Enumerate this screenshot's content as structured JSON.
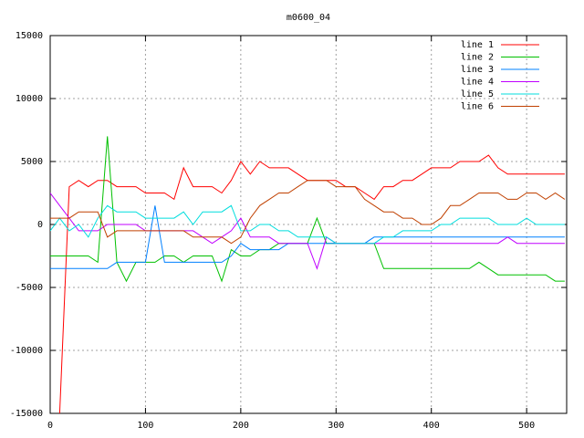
{
  "chart_data": {
    "type": "line",
    "title": "m0600_04",
    "x": [
      0,
      10,
      20,
      30,
      40,
      50,
      60,
      70,
      80,
      90,
      100,
      110,
      120,
      130,
      140,
      150,
      160,
      170,
      180,
      190,
      200,
      210,
      220,
      230,
      240,
      250,
      260,
      270,
      280,
      290,
      300,
      310,
      320,
      330,
      340,
      350,
      360,
      370,
      380,
      390,
      400,
      410,
      420,
      430,
      440,
      450,
      460,
      470,
      480,
      490,
      500,
      510,
      520,
      530,
      540
    ],
    "xlim": [
      0,
      542
    ],
    "xticks": [
      0,
      100,
      200,
      300,
      400,
      500
    ],
    "ylim": [
      -15000,
      15000
    ],
    "yticks": [
      -15000,
      -10000,
      -5000,
      0,
      5000,
      10000,
      15000
    ],
    "grid": true,
    "legend": "top-right",
    "series": [
      {
        "name": "line 1",
        "color": "#ff0000",
        "values": [
          null,
          -15000,
          3000,
          3500,
          3000,
          3500,
          3500,
          3000,
          3000,
          3000,
          2500,
          2500,
          2500,
          2000,
          4500,
          3000,
          3000,
          3000,
          2500,
          3500,
          5000,
          4000,
          5000,
          4500,
          4500,
          4500,
          4000,
          3500,
          3500,
          3500,
          3500,
          3000,
          3000,
          2500,
          2000,
          3000,
          3000,
          3500,
          3500,
          4000,
          4500,
          4500,
          4500,
          5000,
          5000,
          5000,
          5500,
          4500,
          4000,
          4000,
          4000,
          4000,
          4000,
          4000,
          4000
        ]
      },
      {
        "name": "line 2",
        "color": "#00c000",
        "values": [
          -2500,
          -2500,
          -2500,
          -2500,
          -2500,
          -3000,
          7000,
          -3000,
          -4500,
          -3000,
          -3000,
          -3000,
          -2500,
          -2500,
          -3000,
          -2500,
          -2500,
          -2500,
          -4500,
          -2000,
          -2500,
          -2500,
          -2000,
          -2000,
          -1500,
          -1500,
          -1500,
          -1500,
          500,
          -1500,
          -1500,
          -1500,
          -1500,
          -1500,
          -1500,
          -3500,
          -3500,
          -3500,
          -3500,
          -3500,
          -3500,
          -3500,
          -3500,
          -3500,
          -3500,
          -3000,
          -3500,
          -4000,
          -4000,
          -4000,
          -4000,
          -4000,
          -4000,
          -4500,
          -4500
        ]
      },
      {
        "name": "line 3",
        "color": "#0080ff",
        "values": [
          -3500,
          -3500,
          -3500,
          -3500,
          -3500,
          -3500,
          -3500,
          -3000,
          -3000,
          -3000,
          -3000,
          1500,
          -3000,
          -3000,
          -3000,
          -3000,
          -3000,
          -3000,
          -3000,
          -2500,
          -1500,
          -2000,
          -2000,
          -2000,
          -2000,
          -1500,
          -1500,
          -1500,
          -1500,
          -1500,
          -1500,
          -1500,
          -1500,
          -1500,
          -1000,
          -1000,
          -1000,
          -1000,
          -1000,
          -1000,
          -1000,
          -1000,
          -1000,
          -1000,
          -1000,
          -1000,
          -1000,
          -1000,
          -1000,
          -1000,
          -1000,
          -1000,
          -1000,
          -1000,
          -1000
        ]
      },
      {
        "name": "line 4",
        "color": "#c000ff",
        "values": [
          2500,
          1500,
          500,
          -500,
          -500,
          -500,
          0,
          0,
          0,
          0,
          -500,
          -500,
          -500,
          -500,
          -500,
          -500,
          -1000,
          -1500,
          -1000,
          -500,
          500,
          -1000,
          -1000,
          -1000,
          -1500,
          -1500,
          -1500,
          -1500,
          -3500,
          -1000,
          -1500,
          -1500,
          -1500,
          -1500,
          -1500,
          -1500,
          -1500,
          -1500,
          -1500,
          -1500,
          -1500,
          -1500,
          -1500,
          -1500,
          -1500,
          -1500,
          -1500,
          -1500,
          -1000,
          -1500,
          -1500,
          -1500,
          -1500,
          -1500,
          -1500
        ]
      },
      {
        "name": "line 5",
        "color": "#00dddd",
        "values": [
          -500,
          500,
          -500,
          0,
          -1000,
          500,
          1500,
          1000,
          1000,
          1000,
          500,
          500,
          500,
          500,
          1000,
          0,
          1000,
          1000,
          1000,
          1500,
          -500,
          -500,
          0,
          0,
          -500,
          -500,
          -1000,
          -1000,
          -1000,
          -1000,
          -1500,
          -1500,
          -1500,
          -1500,
          -1500,
          -1000,
          -1000,
          -500,
          -500,
          -500,
          -500,
          0,
          0,
          500,
          500,
          500,
          500,
          0,
          0,
          0,
          500,
          0,
          0,
          0,
          0
        ]
      },
      {
        "name": "line 6",
        "color": "#c04000",
        "values": [
          500,
          500,
          500,
          1000,
          1000,
          1000,
          -1000,
          -500,
          -500,
          -500,
          -500,
          -500,
          -500,
          -500,
          -500,
          -1000,
          -1000,
          -1000,
          -1000,
          -1500,
          -1000,
          500,
          1500,
          2000,
          2500,
          2500,
          3000,
          3500,
          3500,
          3500,
          3000,
          3000,
          3000,
          2000,
          1500,
          1000,
          1000,
          500,
          500,
          0,
          0,
          500,
          1500,
          1500,
          2000,
          2500,
          2500,
          2500,
          2000,
          2000,
          2500,
          2500,
          2000,
          2500,
          2000
        ]
      }
    ]
  }
}
